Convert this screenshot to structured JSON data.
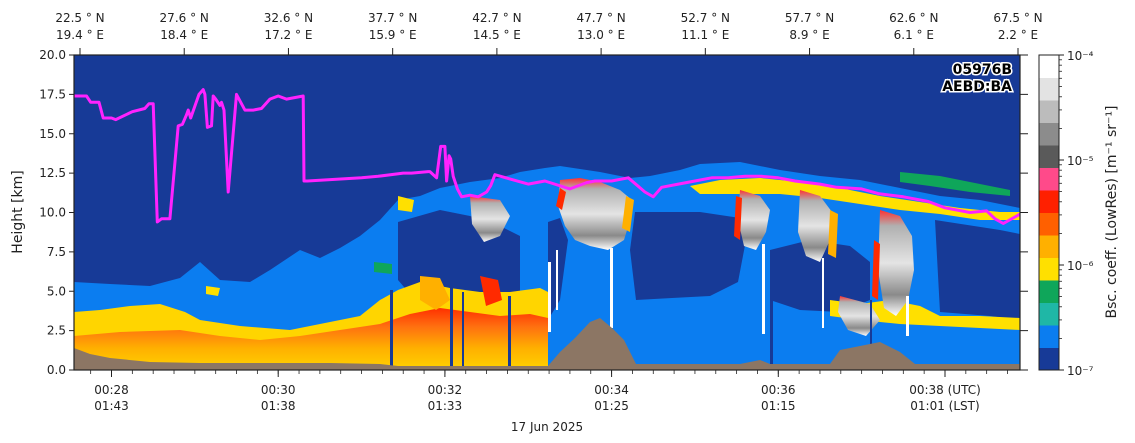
{
  "chart_data": {
    "type": "heatmap",
    "title": "",
    "badge": [
      "05976B",
      "AEBD:BA"
    ],
    "ylabel": "Height [km]",
    "ylim": [
      0,
      20
    ],
    "yticks": [
      "0.0",
      "2.5",
      "5.0",
      "7.5",
      "10.0",
      "12.5",
      "15.0",
      "17.5",
      "20.0"
    ],
    "xlim_minutes": [
      27.55,
      38.9
    ],
    "date_label": "17 Jun 2025",
    "bottom_ticks": [
      {
        "minute": 28,
        "utc": "00:28",
        "lst": "01:43"
      },
      {
        "minute": 30,
        "utc": "00:30",
        "lst": "01:38"
      },
      {
        "minute": 32,
        "utc": "00:32",
        "lst": "01:33"
      },
      {
        "minute": 34,
        "utc": "00:34",
        "lst": "01:25"
      },
      {
        "minute": 36,
        "utc": "00:36",
        "lst": "01:15"
      },
      {
        "minute": 38,
        "utc": "00:38 (UTC)",
        "lst": "01:01 (LST)"
      }
    ],
    "top_ticks": [
      {
        "lat": "22.5 ° N",
        "lon": "19.4 ° E"
      },
      {
        "lat": "27.6 ° N",
        "lon": "18.4 ° E"
      },
      {
        "lat": "32.6 ° N",
        "lon": "17.2 ° E"
      },
      {
        "lat": "37.7 ° N",
        "lon": "15.9 ° E"
      },
      {
        "lat": "42.7 ° N",
        "lon": "14.5 ° E"
      },
      {
        "lat": "47.7 ° N",
        "lon": "13.0 ° E"
      },
      {
        "lat": "52.7 ° N",
        "lon": "11.1 ° E"
      },
      {
        "lat": "57.7 ° N",
        "lon": "8.9 ° E"
      },
      {
        "lat": "62.6 ° N",
        "lon": "6.1 ° E"
      },
      {
        "lat": "67.5 ° N",
        "lon": "2.2 ° E"
      }
    ],
    "colorbar": {
      "label": "Bsc. coeff. (LowRes) [m⁻¹ sr⁻¹]",
      "scale": "log",
      "range": [
        1e-07,
        0.0001
      ],
      "tick_labels": [
        "10⁻⁷",
        "10⁻⁶",
        "10⁻⁵",
        "10⁻⁴"
      ],
      "colors": [
        "#173a97",
        "#0b7df0",
        "#1fb7a6",
        "#0fa65a",
        "#ffe000",
        "#ffb000",
        "#ff6000",
        "#ff2000",
        "#ff4a8a",
        "#5a5a5a",
        "#8c8c8c",
        "#bcbcbc",
        "#e3e3e3",
        "#ffffff"
      ]
    },
    "tropopause_line": {
      "name": "",
      "color": "#ff22ff",
      "x": [
        27.55,
        27.7,
        27.75,
        27.85,
        27.9,
        28.0,
        28.05,
        28.25,
        28.4,
        28.45,
        28.5,
        28.55,
        28.6,
        28.7,
        28.8,
        28.85,
        28.9,
        28.92,
        28.95,
        29.05,
        29.1,
        29.12,
        29.15,
        29.2,
        29.22,
        29.25,
        29.3,
        29.32,
        29.35,
        29.4,
        29.5,
        29.6,
        29.7,
        29.8,
        29.9,
        30.0,
        30.1,
        30.3,
        30.31,
        30.35,
        31.0,
        31.2,
        31.5,
        31.6,
        31.8,
        31.82,
        31.9,
        31.95,
        32.0,
        32.02,
        32.05,
        32.07,
        32.1,
        32.15,
        32.2,
        32.3,
        32.4,
        32.5,
        32.55,
        32.6,
        32.8,
        33.0,
        33.2,
        33.5,
        33.7,
        33.8,
        34.0,
        34.2,
        34.4,
        34.5,
        34.6,
        34.8,
        35.0,
        35.2,
        35.4,
        35.6,
        35.8,
        36.0,
        36.2,
        36.5,
        36.7,
        37.0,
        37.2,
        37.5,
        37.8,
        38.0,
        38.3,
        38.5,
        38.6,
        38.7,
        38.9
      ],
      "y": [
        17.4,
        17.4,
        17.0,
        17.0,
        16.0,
        16.0,
        15.9,
        16.4,
        16.6,
        16.9,
        16.9,
        9.4,
        9.6,
        9.6,
        15.5,
        15.6,
        16.2,
        16.5,
        16.0,
        17.5,
        17.8,
        17.5,
        15.4,
        15.5,
        17.4,
        17.2,
        16.8,
        17.0,
        16.5,
        11.3,
        17.5,
        16.5,
        16.5,
        16.6,
        17.2,
        17.4,
        17.2,
        17.4,
        12.0,
        12.0,
        12.2,
        12.3,
        12.5,
        12.5,
        12.6,
        12.6,
        12.2,
        14.2,
        14.2,
        12.0,
        13.6,
        13.4,
        12.3,
        11.5,
        11.0,
        11.1,
        11.0,
        11.3,
        11.7,
        12.4,
        12.1,
        11.8,
        12.0,
        11.5,
        11.9,
        12.0,
        12.0,
        12.2,
        11.3,
        11.0,
        11.6,
        11.8,
        12.0,
        12.2,
        12.2,
        12.3,
        12.3,
        12.2,
        12.0,
        11.8,
        11.6,
        11.5,
        11.2,
        11.0,
        10.7,
        10.3,
        10.0,
        10.1,
        9.6,
        9.3,
        9.9
      ]
    }
  }
}
